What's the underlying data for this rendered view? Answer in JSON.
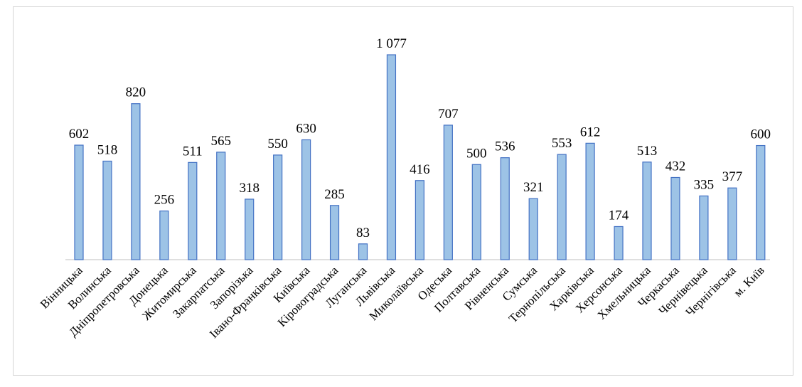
{
  "chart_data": {
    "type": "bar",
    "title": "",
    "xlabel": "",
    "ylabel": "",
    "ylim": [
      0,
      1100
    ],
    "grid": false,
    "legend": "none",
    "bar_fill": "#9dc3e6",
    "bar_stroke": "#4472c4",
    "categories": [
      "Вінницька",
      "Волинська",
      "Дніпропетровська",
      "Донецька",
      "Житомирська",
      "Закарпатська",
      "Запорізька",
      "Івано-Франківська",
      "Київська",
      "Кіровоградська",
      "Луганська",
      "Львівська",
      "Миколаївська",
      "Одеська",
      "Полтавська",
      "Рівненська",
      "Сумська",
      "Тернопільська",
      "Харківська",
      "Херсонська",
      "Хмельницька",
      "Черкаська",
      "Чернівецька",
      "Чернігівська",
      "м. Київ"
    ],
    "values": [
      602,
      518,
      820,
      256,
      511,
      565,
      318,
      550,
      630,
      285,
      83,
      1077,
      416,
      707,
      500,
      536,
      321,
      553,
      612,
      174,
      513,
      432,
      335,
      377,
      600
    ],
    "value_labels": [
      "602",
      "518",
      "820",
      "256",
      "511",
      "565",
      "318",
      "550",
      "630",
      "285",
      "83",
      "1 077",
      "416",
      "707",
      "500",
      "536",
      "321",
      "553",
      "612",
      "174",
      "513",
      "432",
      "335",
      "377",
      "600"
    ]
  }
}
